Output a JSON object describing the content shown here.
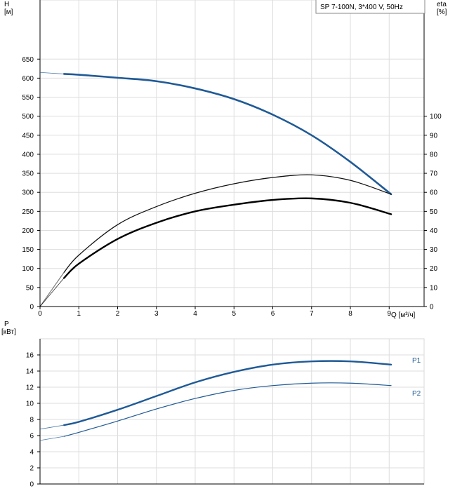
{
  "chart_data": [
    {
      "type": "line",
      "panel": "head-efficiency",
      "legend_text": "SP 7-100N, 3*400 V, 50Hz",
      "left_axis_label": [
        "H",
        "[м]"
      ],
      "right_axis_label": [
        "eta",
        "[%]"
      ],
      "x_axis_label": "Q [м³/ч]",
      "x_ticks": [
        "0",
        "1",
        "2",
        "3",
        "4",
        "5",
        "6",
        "7",
        "8",
        "9"
      ],
      "y_ticks": [
        "0",
        "50",
        "100",
        "150",
        "200",
        "250",
        "300",
        "350",
        "400",
        "450",
        "500",
        "550",
        "600",
        "650"
      ],
      "y2_ticks": [
        "0",
        "10",
        "20",
        "30",
        "40",
        "50",
        "60",
        "70",
        "80",
        "90",
        "100"
      ],
      "xlim": [
        0,
        9.9
      ],
      "ylim": [
        0,
        750
      ],
      "y2lim": [
        0,
        150
      ],
      "grid": true,
      "series": [
        {
          "id": "head",
          "axis": "left",
          "color": "#1f5a96",
          "width": 2.6,
          "thin_start": 0.62,
          "points": [
            [
              0,
              615
            ],
            [
              0.62,
              611
            ],
            [
              1,
              609
            ],
            [
              2,
              601
            ],
            [
              3,
              592
            ],
            [
              4,
              573
            ],
            [
              5,
              545
            ],
            [
              6,
              504
            ],
            [
              7,
              450
            ],
            [
              8,
              380
            ],
            [
              9.05,
              295
            ]
          ]
        },
        {
          "id": "efficiency-a",
          "axis": "right",
          "color": "#111111",
          "width": 1.3,
          "thin_start": 0.62,
          "points": [
            [
              0,
              0
            ],
            [
              0.62,
              18
            ],
            [
              1,
              27
            ],
            [
              2,
              43
            ],
            [
              3,
              52.5
            ],
            [
              4,
              59.5
            ],
            [
              5,
              64.5
            ],
            [
              6,
              67.8
            ],
            [
              7,
              69.2
            ],
            [
              8,
              66.3
            ],
            [
              9.05,
              59
            ]
          ]
        },
        {
          "id": "efficiency-b",
          "axis": "right",
          "color": "#000000",
          "width": 2.4,
          "thin_start": 0.62,
          "points": [
            [
              0,
              0
            ],
            [
              0.62,
              15
            ],
            [
              1,
              22.5
            ],
            [
              2,
              35.5
            ],
            [
              3,
              44
            ],
            [
              4,
              50
            ],
            [
              5,
              53.5
            ],
            [
              6,
              56
            ],
            [
              7,
              56.8
            ],
            [
              8,
              54.5
            ],
            [
              9.05,
              48.5
            ]
          ]
        }
      ]
    },
    {
      "type": "line",
      "panel": "power",
      "left_axis_label": [
        "P",
        "[кВт]"
      ],
      "y_ticks": [
        "0",
        "2",
        "4",
        "6",
        "8",
        "10",
        "12",
        "14",
        "16"
      ],
      "xlim": [
        0,
        9.9
      ],
      "ylim": [
        0,
        18
      ],
      "grid": true,
      "series": [
        {
          "name": "P1",
          "axis": "left",
          "color": "#1f5a96",
          "width": 2.4,
          "thin_start": 0.62,
          "points": [
            [
              0,
              6.8
            ],
            [
              0.62,
              7.3
            ],
            [
              1,
              7.7
            ],
            [
              2,
              9.2
            ],
            [
              3,
              10.9
            ],
            [
              4,
              12.6
            ],
            [
              5,
              13.9
            ],
            [
              6,
              14.8
            ],
            [
              7,
              15.2
            ],
            [
              8,
              15.2
            ],
            [
              9.05,
              14.8
            ]
          ]
        },
        {
          "name": "P2",
          "axis": "left",
          "color": "#1f5a96",
          "width": 1.2,
          "thin_start": 0.62,
          "points": [
            [
              0,
              5.4
            ],
            [
              0.62,
              5.9
            ],
            [
              1,
              6.4
            ],
            [
              2,
              7.8
            ],
            [
              3,
              9.3
            ],
            [
              4,
              10.6
            ],
            [
              5,
              11.6
            ],
            [
              6,
              12.2
            ],
            [
              7,
              12.5
            ],
            [
              8,
              12.5
            ],
            [
              9.05,
              12.2
            ]
          ]
        }
      ]
    }
  ]
}
